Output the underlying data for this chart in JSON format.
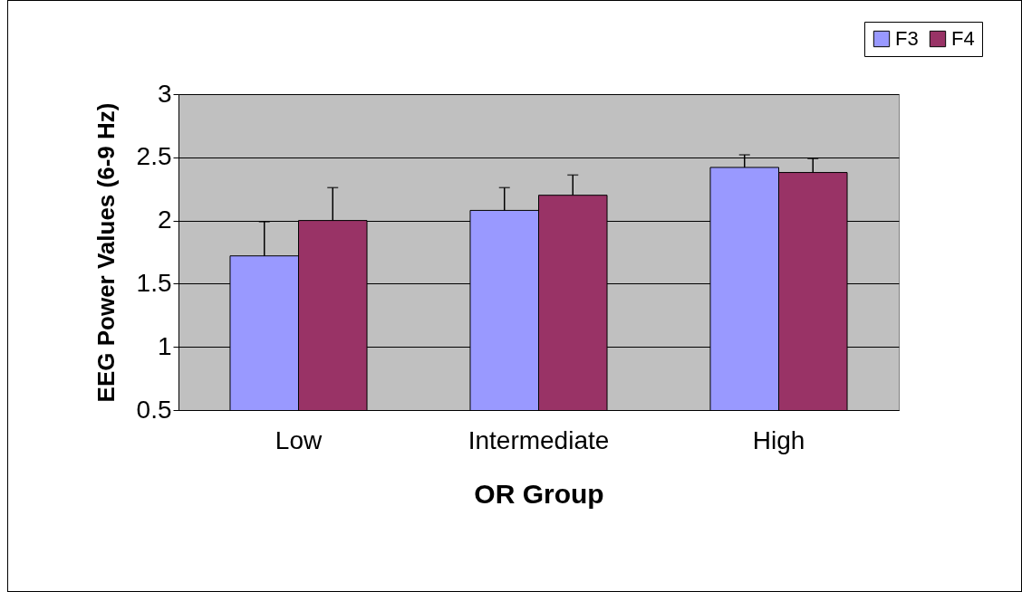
{
  "chart_data": {
    "type": "bar",
    "xlabel": "OR Group",
    "ylabel": "EEG Power Values (6-9 Hz)",
    "categories": [
      "Low",
      "Intermediate",
      "High"
    ],
    "series": [
      {
        "name": "F3",
        "color": "#9999ff",
        "values": [
          1.72,
          2.08,
          2.42
        ],
        "errors": [
          [
            1.72,
            1.99
          ],
          [
            2.08,
            2.26
          ],
          [
            2.42,
            2.52
          ]
        ]
      },
      {
        "name": "F4",
        "color": "#993366",
        "values": [
          2.0,
          2.2,
          2.38
        ],
        "errors": [
          [
            2.0,
            2.26
          ],
          [
            2.2,
            2.36
          ],
          [
            2.38,
            2.49
          ]
        ]
      }
    ],
    "ylim": [
      0.5,
      3
    ],
    "yticks": [
      0.5,
      1,
      1.5,
      2,
      2.5,
      3
    ],
    "grid": "y",
    "legend": "top right"
  }
}
